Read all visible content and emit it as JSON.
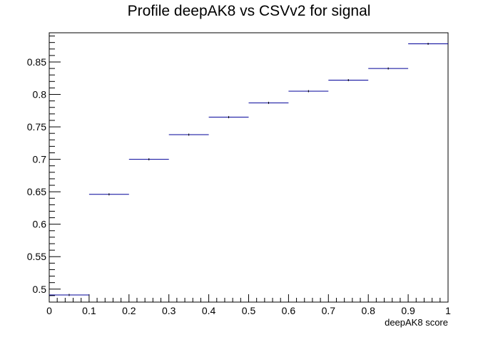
{
  "chart_data": {
    "type": "scatter",
    "title": "Profile deepAK8 vs CSVv2 for signal",
    "xlabel": "deepAK8 score",
    "ylabel": "",
    "xlim": [
      0,
      1
    ],
    "ylim": [
      0.48,
      0.895
    ],
    "x_ticks": [
      0,
      0.1,
      0.2,
      0.3,
      0.4,
      0.5,
      0.6,
      0.7,
      0.8,
      0.9,
      1
    ],
    "x_tick_labels": [
      "0",
      "0.1",
      "0.2",
      "0.3",
      "0.4",
      "0.5",
      "0.6",
      "0.7",
      "0.8",
      "0.9",
      "1"
    ],
    "y_ticks": [
      0.5,
      0.55,
      0.6,
      0.65,
      0.7,
      0.75,
      0.8,
      0.85
    ],
    "y_tick_labels": [
      "0.5",
      "0.55",
      "0.6",
      "0.65",
      "0.7",
      "0.75",
      "0.8",
      "0.85"
    ],
    "grid": false,
    "legend": "none",
    "series": [
      {
        "x": [
          0.05,
          0.15,
          0.25,
          0.35,
          0.45,
          0.55,
          0.65,
          0.75,
          0.85,
          0.95
        ],
        "x_err": [
          0.05,
          0.05,
          0.05,
          0.05,
          0.05,
          0.05,
          0.05,
          0.05,
          0.05,
          0.05
        ],
        "y": [
          0.491,
          0.646,
          0.7,
          0.738,
          0.765,
          0.787,
          0.805,
          0.822,
          0.84,
          0.878
        ],
        "color": "#000099"
      }
    ]
  }
}
